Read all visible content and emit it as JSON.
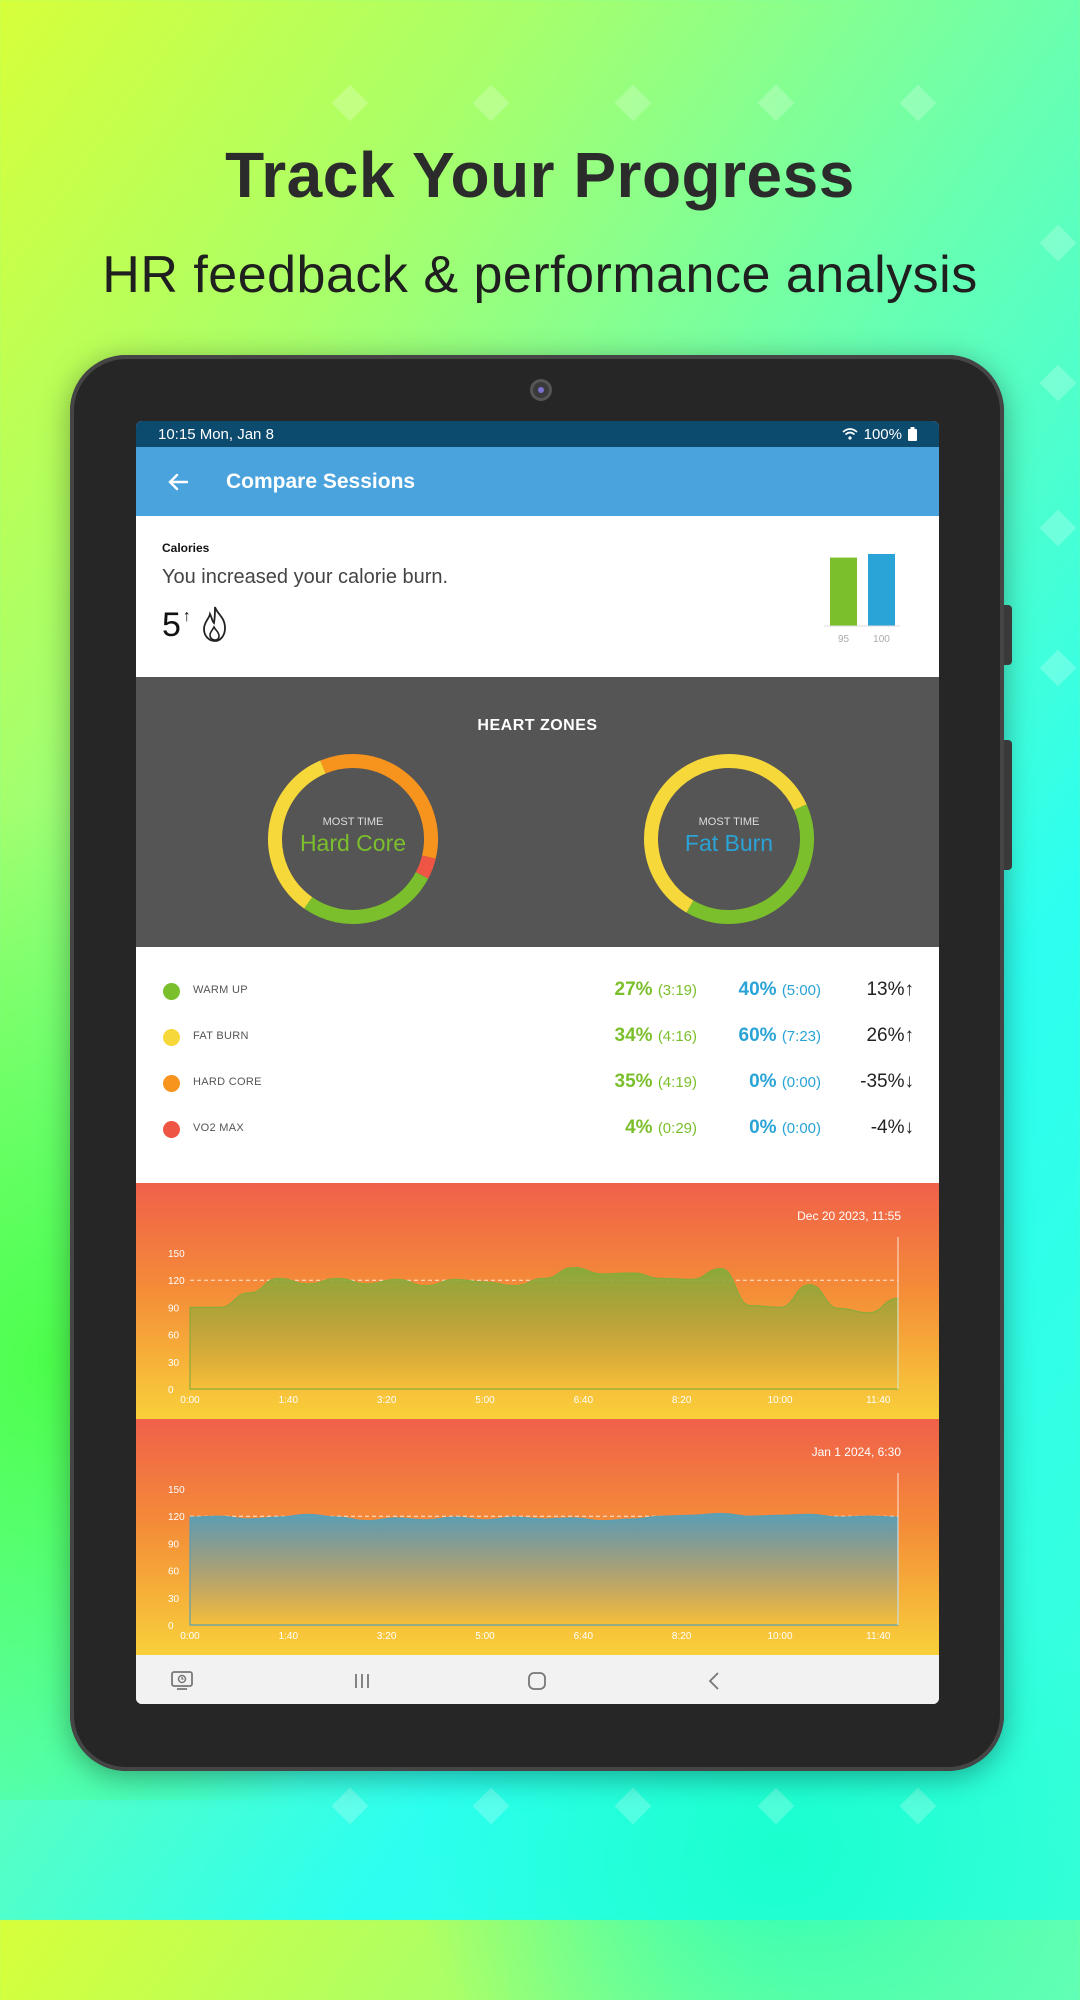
{
  "promo": {
    "headline": "Track Your Progress",
    "subhead": "HR feedback & performance analysis"
  },
  "status_bar": {
    "time_date": "10:15  Mon, Jan 8",
    "battery": "100%"
  },
  "app_bar": {
    "title": "Compare Sessions",
    "back_icon": "back-arrow-icon"
  },
  "calories": {
    "label": "Calories",
    "message": "You increased your calorie burn.",
    "value": "5",
    "change_icon": "↑",
    "bars": [
      {
        "label": "95",
        "value": 95,
        "color": "#7bbf2c"
      },
      {
        "label": "100",
        "value": 100,
        "color": "#2aa3d6"
      }
    ]
  },
  "heart_zones": {
    "title": "HEART ZONES",
    "left": {
      "caption": "MOST TIME",
      "zone": "Hard Core",
      "zone_color": "#7bbf2c",
      "segments": [
        {
          "zone": "warm_up",
          "pct": 27,
          "color": "#7bbf2c"
        },
        {
          "zone": "fat_burn",
          "pct": 34,
          "color": "#f6d83a"
        },
        {
          "zone": "hard_core",
          "pct": 35,
          "color": "#f7941d"
        },
        {
          "zone": "vo2_max",
          "pct": 4,
          "color": "#ef5545"
        }
      ]
    },
    "right": {
      "caption": "MOST TIME",
      "zone": "Fat Burn",
      "zone_color": "#2aa3d6",
      "segments": [
        {
          "zone": "warm_up",
          "pct": 40,
          "color": "#7bbf2c"
        },
        {
          "zone": "fat_burn",
          "pct": 60,
          "color": "#f6d83a"
        }
      ]
    }
  },
  "zone_table": [
    {
      "name": "WARM UP",
      "color": "#7bbf2c",
      "s1_pct": "27%",
      "s1_time": "(3:19)",
      "s2_pct": "40%",
      "s2_time": "(5:00)",
      "change": "13%↑"
    },
    {
      "name": "FAT BURN",
      "color": "#f6d83a",
      "s1_pct": "34%",
      "s1_time": "(4:16)",
      "s2_pct": "60%",
      "s2_time": "(7:23)",
      "change": "26%↑"
    },
    {
      "name": "HARD CORE",
      "color": "#f7941d",
      "s1_pct": "35%",
      "s1_time": "(4:19)",
      "s2_pct": "0%",
      "s2_time": "(0:00)",
      "change": "-35%↓"
    },
    {
      "name": "VO2 MAX",
      "color": "#ef5545",
      "s1_pct": "4%",
      "s1_time": "(0:29)",
      "s2_pct": "0%",
      "s2_time": "(0:00)",
      "change": "-4%↓"
    }
  ],
  "chart_data": [
    {
      "type": "area",
      "date": "Dec 20 2023, 11:55",
      "ylim": [
        0,
        150
      ],
      "yticks": [
        "150",
        "120",
        "90",
        "60",
        "30",
        "0"
      ],
      "xticks": [
        "0:00",
        "1:40",
        "3:20",
        "5:00",
        "6:40",
        "8:20",
        "10:00",
        "11:40"
      ],
      "reference_line": 120,
      "fill_color": "#8aaa3a",
      "x_minutes": [
        0,
        0.5,
        1,
        1.5,
        2,
        2.5,
        3,
        3.5,
        4,
        4.5,
        5,
        5.5,
        6,
        6.5,
        7,
        7.5,
        8,
        8.5,
        9,
        9.5,
        10,
        10.5,
        11,
        11.5,
        12
      ],
      "y": [
        90,
        90,
        106,
        122,
        116,
        122,
        116,
        121,
        114,
        121,
        118,
        114,
        122,
        134,
        127,
        128,
        122,
        121,
        133,
        92,
        90,
        115,
        89,
        84,
        100
      ]
    },
    {
      "type": "area",
      "date": "Jan 1 2024, 6:30",
      "ylim": [
        0,
        150
      ],
      "yticks": [
        "150",
        "120",
        "90",
        "60",
        "30",
        "0"
      ],
      "xticks": [
        "0:00",
        "1:40",
        "3:20",
        "5:00",
        "6:40",
        "8:20",
        "10:00",
        "11:40"
      ],
      "reference_line": 120,
      "fill_color": "#5a9fb5",
      "x_minutes": [
        0,
        0.5,
        1,
        1.5,
        2,
        2.5,
        3,
        3.5,
        4,
        4.5,
        5,
        5.5,
        6,
        6.5,
        7,
        7.5,
        8,
        8.5,
        9,
        9.5,
        10,
        10.5,
        11,
        11.5,
        12
      ],
      "y": [
        119,
        120,
        117,
        119,
        122,
        119,
        115,
        118,
        116,
        119,
        116,
        119,
        117,
        118,
        115,
        117,
        120,
        121,
        123,
        120,
        121,
        122,
        119,
        120,
        119
      ]
    }
  ],
  "nav_bar": {
    "items": [
      {
        "name": "recent-apps-shortcut-icon",
        "glyph": "⎙"
      },
      {
        "name": "recents-icon",
        "glyph": "|||"
      },
      {
        "name": "home-icon",
        "glyph": "▢"
      },
      {
        "name": "back-nav-icon",
        "glyph": "‹"
      }
    ]
  }
}
